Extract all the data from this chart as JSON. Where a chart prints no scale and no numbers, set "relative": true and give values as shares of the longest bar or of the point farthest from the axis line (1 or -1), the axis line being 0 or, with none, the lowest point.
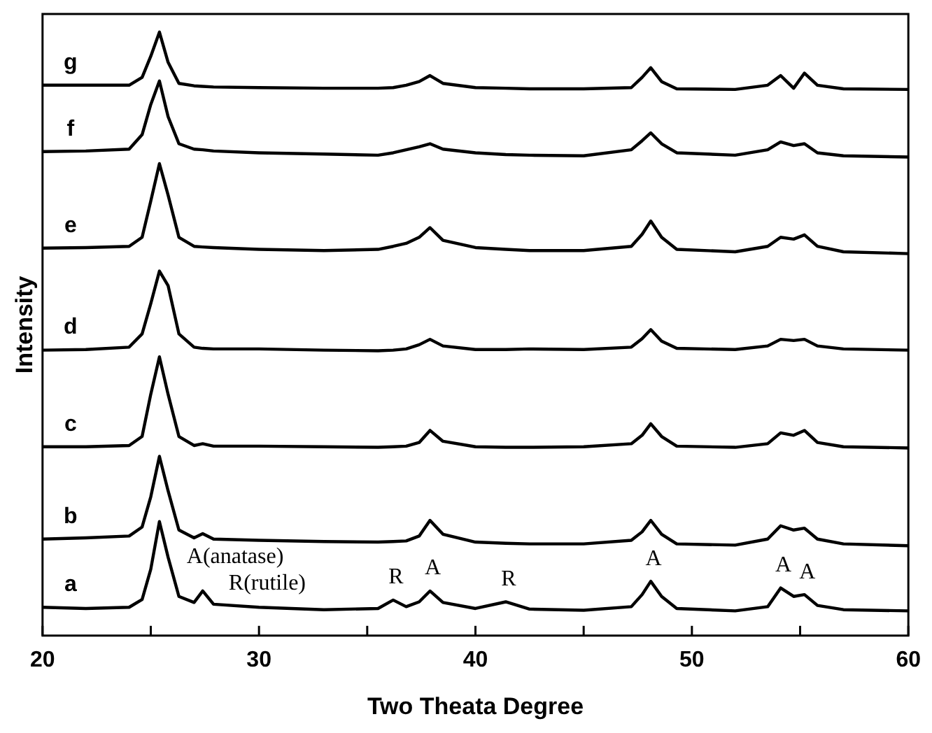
{
  "chart_data": {
    "type": "line",
    "xlabel": "Two Theata Degree",
    "ylabel": "Intensity",
    "relative": true,
    "grid": false,
    "legend": false,
    "marker": "none",
    "line_style": "solid",
    "xlim": [
      20,
      60
    ],
    "xticks": [
      20,
      {
        "value": 25,
        "label": null
      },
      30,
      {
        "value": 35,
        "label": null
      },
      40,
      {
        "value": 45,
        "label": null
      },
      50,
      {
        "value": 55,
        "label": null
      },
      60
    ],
    "x": [
      20,
      22,
      24,
      24.6,
      25.0,
      25.4,
      25.8,
      26.3,
      27,
      27.4,
      27.9,
      30,
      33,
      35.5,
      36.2,
      36.8,
      37.4,
      37.9,
      38.5,
      40,
      41.4,
      42.5,
      45,
      47.2,
      47.7,
      48.1,
      48.6,
      49.3,
      52,
      53.5,
      54.1,
      54.7,
      55.2,
      55.8,
      57,
      60
    ],
    "series": [
      {
        "name": "a",
        "color": "#000000",
        "values": [
          0.047,
          0.045,
          0.047,
          0.06,
          0.11,
          0.189,
          0.13,
          0.065,
          0.055,
          0.074,
          0.052,
          0.047,
          0.043,
          0.045,
          0.059,
          0.048,
          0.056,
          0.074,
          0.055,
          0.045,
          0.056,
          0.044,
          0.042,
          0.048,
          0.068,
          0.09,
          0.065,
          0.045,
          0.041,
          0.048,
          0.079,
          0.065,
          0.068,
          0.05,
          0.043,
          0.041
        ]
      },
      {
        "name": "b",
        "color": "#000000",
        "values": [
          0.16,
          0.162,
          0.165,
          0.18,
          0.23,
          0.297,
          0.24,
          0.175,
          0.162,
          0.169,
          0.16,
          0.158,
          0.156,
          0.155,
          0.156,
          0.157,
          0.165,
          0.191,
          0.168,
          0.155,
          0.153,
          0.152,
          0.152,
          0.158,
          0.172,
          0.191,
          0.168,
          0.152,
          0.15,
          0.16,
          0.182,
          0.175,
          0.178,
          0.16,
          0.152,
          0.149
        ]
      },
      {
        "name": "c",
        "color": "#000000",
        "values": [
          0.313,
          0.313,
          0.315,
          0.33,
          0.4,
          0.462,
          0.4,
          0.33,
          0.315,
          0.318,
          0.314,
          0.314,
          0.313,
          0.312,
          0.313,
          0.314,
          0.32,
          0.34,
          0.322,
          0.313,
          0.312,
          0.312,
          0.313,
          0.318,
          0.332,
          0.351,
          0.33,
          0.314,
          0.312,
          0.318,
          0.336,
          0.332,
          0.34,
          0.32,
          0.313,
          0.311
        ]
      },
      {
        "name": "d",
        "color": "#000000",
        "values": [
          0.473,
          0.474,
          0.478,
          0.5,
          0.55,
          0.604,
          0.58,
          0.5,
          0.478,
          0.476,
          0.475,
          0.475,
          0.473,
          0.472,
          0.473,
          0.475,
          0.482,
          0.491,
          0.48,
          0.474,
          0.474,
          0.475,
          0.474,
          0.478,
          0.492,
          0.507,
          0.488,
          0.476,
          0.474,
          0.48,
          0.491,
          0.489,
          0.491,
          0.48,
          0.475,
          0.473
        ]
      },
      {
        "name": "e",
        "color": "#000000",
        "values": [
          0.642,
          0.643,
          0.645,
          0.66,
          0.72,
          0.782,
          0.73,
          0.66,
          0.645,
          0.644,
          0.643,
          0.64,
          0.638,
          0.64,
          0.645,
          0.65,
          0.66,
          0.676,
          0.655,
          0.643,
          0.64,
          0.638,
          0.638,
          0.645,
          0.665,
          0.687,
          0.66,
          0.64,
          0.636,
          0.645,
          0.66,
          0.657,
          0.664,
          0.645,
          0.636,
          0.633
        ]
      },
      {
        "name": "f",
        "color": "#000000",
        "values": [
          0.802,
          0.803,
          0.806,
          0.83,
          0.88,
          0.919,
          0.86,
          0.815,
          0.806,
          0.805,
          0.803,
          0.8,
          0.798,
          0.796,
          0.8,
          0.805,
          0.81,
          0.815,
          0.806,
          0.8,
          0.797,
          0.796,
          0.795,
          0.805,
          0.82,
          0.833,
          0.815,
          0.8,
          0.796,
          0.805,
          0.818,
          0.812,
          0.815,
          0.8,
          0.795,
          0.793
        ]
      },
      {
        "name": "g",
        "color": "#000000",
        "values": [
          0.912,
          0.912,
          0.912,
          0.925,
          0.96,
          1.0,
          0.95,
          0.915,
          0.911,
          0.91,
          0.909,
          0.908,
          0.907,
          0.907,
          0.908,
          0.912,
          0.918,
          0.928,
          0.915,
          0.908,
          0.907,
          0.906,
          0.906,
          0.908,
          0.925,
          0.941,
          0.918,
          0.906,
          0.905,
          0.912,
          0.928,
          0.907,
          0.932,
          0.912,
          0.906,
          0.905
        ]
      }
    ],
    "annotations": [
      "A(anatase)",
      "R(rutile)",
      {
        "text": "R",
        "x": 36.2,
        "y": 0.059
      },
      {
        "text": "A",
        "x": 37.9,
        "y": 0.074
      },
      {
        "text": "R",
        "x": 41.4,
        "y": 0.056
      },
      {
        "text": "A",
        "x": 48.1,
        "y": 0.09
      },
      {
        "text": "A",
        "x": 54.1,
        "y": 0.079
      },
      {
        "text": "A",
        "x": 55.2,
        "y": 0.068
      }
    ]
  }
}
